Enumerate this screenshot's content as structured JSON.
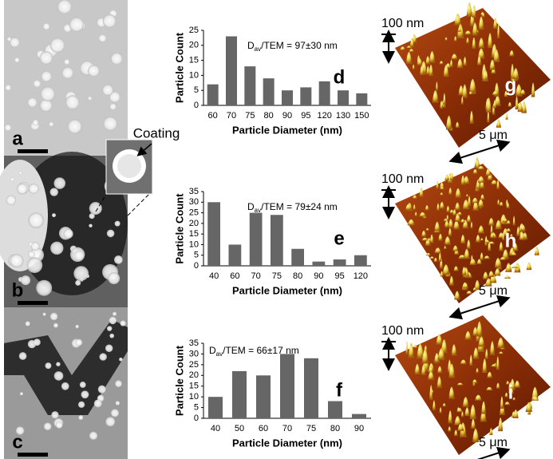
{
  "chart_data": [
    {
      "type": "bar",
      "panel": "d",
      "x_label": "Particle Diameter (nm)",
      "y_label": "Particle Count",
      "annotation": {
        "main": "D",
        "sub": "av",
        "rest": "/TEM = 97±30 nm"
      },
      "categories": [
        "60",
        "70",
        "75",
        "80",
        "90",
        "95",
        "120",
        "130",
        "150"
      ],
      "values": [
        7,
        23,
        13,
        9,
        5,
        6,
        8,
        5,
        4
      ],
      "color": "#666666",
      "ylim": [
        0,
        25
      ],
      "yticks": [
        0,
        5,
        10,
        15,
        20,
        25
      ]
    },
    {
      "type": "bar",
      "panel": "e",
      "x_label": "Particle Diameter (nm)",
      "y_label": "Particle Count",
      "annotation": {
        "main": "D",
        "sub": "av",
        "rest": "/TEM = 79±24 nm"
      },
      "categories": [
        "40",
        "60",
        "70",
        "75",
        "80",
        "90",
        "95",
        "120"
      ],
      "values": [
        30,
        10,
        25,
        24,
        8,
        2,
        3,
        5
      ],
      "color": "#666666",
      "ylim": [
        0,
        35
      ],
      "yticks": [
        0,
        5,
        10,
        15,
        20,
        25,
        30,
        35
      ]
    },
    {
      "type": "bar",
      "panel": "f",
      "x_label": "Particle Diameter (nm)",
      "y_label": "Particle Count",
      "annotation": {
        "main": "D",
        "sub": "av",
        "rest": "/TEM = 66±17 nm"
      },
      "categories": [
        "40",
        "50",
        "60",
        "70",
        "75",
        "80",
        "90"
      ],
      "values": [
        10,
        22,
        20,
        30,
        28,
        8,
        2
      ],
      "color": "#666666",
      "ylim": [
        0,
        35
      ],
      "yticks": [
        0,
        5,
        10,
        15,
        20,
        25,
        30,
        35
      ]
    }
  ],
  "tem_panels": [
    {
      "label": "a"
    },
    {
      "label": "b"
    },
    {
      "label": "c"
    }
  ],
  "inset_label": "Coating",
  "afm_panels": [
    {
      "label": "g",
      "height_scale": "100 nm",
      "lateral_scale": "5 μm"
    },
    {
      "label": "h",
      "height_scale": "100 nm",
      "lateral_scale": "5 μm"
    },
    {
      "label": "i",
      "height_scale": "100 nm",
      "lateral_scale": "5 μm"
    }
  ]
}
